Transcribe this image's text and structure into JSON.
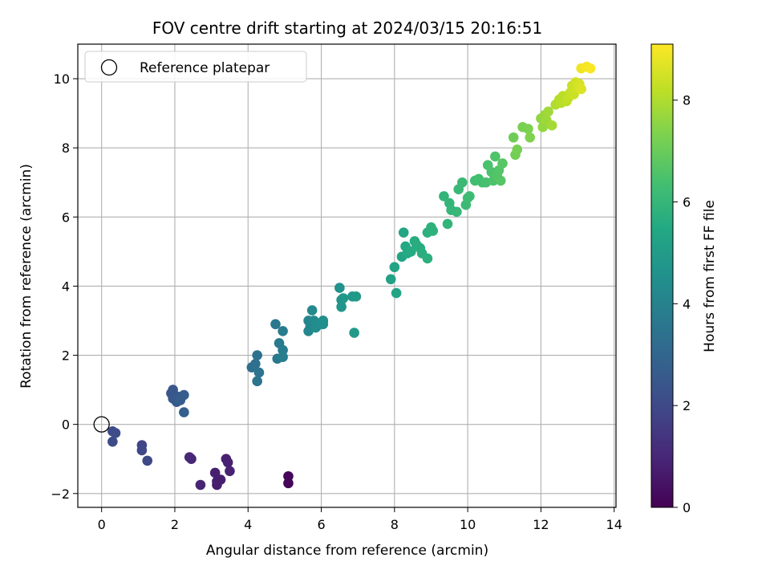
{
  "chart_data": {
    "type": "scatter",
    "title": "FOV centre drift starting at 2024/03/15 20:16:51",
    "xlabel": "Angular distance from reference (arcmin)",
    "ylabel": "Rotation from reference (arcmin)",
    "xlim": [
      -0.65,
      14.05
    ],
    "ylim": [
      -2.4,
      11.0
    ],
    "xticks": [
      0,
      2,
      4,
      6,
      8,
      10,
      12,
      14
    ],
    "yticks": [
      -2,
      0,
      2,
      4,
      6,
      8,
      10
    ],
    "grid": true,
    "legend": {
      "placement": "top-left",
      "entries": [
        "Reference platepar"
      ]
    },
    "reference_point": {
      "x": 0,
      "y": 0,
      "label": "Reference platepar"
    },
    "colorbar": {
      "label": "Hours from first FF file",
      "colormap": "viridis",
      "range": [
        0,
        9.1
      ],
      "ticks": [
        0,
        2,
        4,
        6,
        8
      ]
    },
    "points": [
      {
        "x": 5.1,
        "y": -1.7,
        "c": 0.1
      },
      {
        "x": 5.1,
        "y": -1.5,
        "c": 0.15
      },
      {
        "x": 3.15,
        "y": -1.75,
        "c": 0.7
      },
      {
        "x": 3.15,
        "y": -1.65,
        "c": 0.72
      },
      {
        "x": 3.25,
        "y": -1.6,
        "c": 0.75
      },
      {
        "x": 3.1,
        "y": -1.4,
        "c": 0.78
      },
      {
        "x": 3.4,
        "y": -1.0,
        "c": 0.8
      },
      {
        "x": 3.45,
        "y": -1.1,
        "c": 0.82
      },
      {
        "x": 3.5,
        "y": -1.35,
        "c": 0.85
      },
      {
        "x": 2.7,
        "y": -1.75,
        "c": 0.9
      },
      {
        "x": 2.45,
        "y": -1.0,
        "c": 1.0
      },
      {
        "x": 2.4,
        "y": -0.95,
        "c": 1.05
      },
      {
        "x": 1.1,
        "y": -0.6,
        "c": 1.9
      },
      {
        "x": 1.1,
        "y": -0.75,
        "c": 1.95
      },
      {
        "x": 1.25,
        "y": -1.05,
        "c": 2.0
      },
      {
        "x": 0.3,
        "y": -0.5,
        "c": 2.05
      },
      {
        "x": 0.3,
        "y": -0.2,
        "c": 2.1
      },
      {
        "x": 0.38,
        "y": -0.25,
        "c": 2.15
      },
      {
        "x": 1.9,
        "y": 0.9,
        "c": 2.4
      },
      {
        "x": 1.95,
        "y": 1.0,
        "c": 2.45
      },
      {
        "x": 1.95,
        "y": 0.75,
        "c": 2.5
      },
      {
        "x": 2.05,
        "y": 0.65,
        "c": 2.55
      },
      {
        "x": 2.1,
        "y": 0.8,
        "c": 2.6
      },
      {
        "x": 2.15,
        "y": 0.7,
        "c": 2.65
      },
      {
        "x": 2.25,
        "y": 0.85,
        "c": 2.7
      },
      {
        "x": 2.25,
        "y": 0.35,
        "c": 2.75
      },
      {
        "x": 4.1,
        "y": 1.65,
        "c": 3.3
      },
      {
        "x": 4.2,
        "y": 1.75,
        "c": 3.35
      },
      {
        "x": 4.25,
        "y": 2.0,
        "c": 3.4
      },
      {
        "x": 4.3,
        "y": 1.5,
        "c": 3.45
      },
      {
        "x": 4.25,
        "y": 1.25,
        "c": 3.5
      },
      {
        "x": 4.75,
        "y": 2.9,
        "c": 3.6
      },
      {
        "x": 4.8,
        "y": 1.9,
        "c": 3.65
      },
      {
        "x": 4.85,
        "y": 2.35,
        "c": 3.7
      },
      {
        "x": 4.95,
        "y": 2.15,
        "c": 3.75
      },
      {
        "x": 4.95,
        "y": 2.7,
        "c": 3.8
      },
      {
        "x": 4.95,
        "y": 1.95,
        "c": 3.85
      },
      {
        "x": 5.65,
        "y": 3.0,
        "c": 4.1
      },
      {
        "x": 5.65,
        "y": 2.7,
        "c": 4.15
      },
      {
        "x": 5.7,
        "y": 2.85,
        "c": 4.2
      },
      {
        "x": 5.75,
        "y": 3.3,
        "c": 4.25
      },
      {
        "x": 5.8,
        "y": 3.0,
        "c": 4.3
      },
      {
        "x": 5.85,
        "y": 2.8,
        "c": 4.35
      },
      {
        "x": 5.95,
        "y": 2.9,
        "c": 4.4
      },
      {
        "x": 6.05,
        "y": 3.0,
        "c": 4.45
      },
      {
        "x": 6.05,
        "y": 2.9,
        "c": 4.5
      },
      {
        "x": 6.5,
        "y": 3.95,
        "c": 4.6
      },
      {
        "x": 6.55,
        "y": 3.6,
        "c": 4.65
      },
      {
        "x": 6.55,
        "y": 3.4,
        "c": 4.7
      },
      {
        "x": 6.6,
        "y": 3.65,
        "c": 4.75
      },
      {
        "x": 6.85,
        "y": 3.7,
        "c": 4.8
      },
      {
        "x": 6.95,
        "y": 3.7,
        "c": 4.85
      },
      {
        "x": 6.9,
        "y": 2.65,
        "c": 4.9
      },
      {
        "x": 7.9,
        "y": 4.2,
        "c": 5.2
      },
      {
        "x": 8.0,
        "y": 4.55,
        "c": 5.25
      },
      {
        "x": 8.05,
        "y": 3.8,
        "c": 5.3
      },
      {
        "x": 8.2,
        "y": 4.85,
        "c": 5.35
      },
      {
        "x": 8.25,
        "y": 5.55,
        "c": 5.4
      },
      {
        "x": 8.3,
        "y": 5.15,
        "c": 5.45
      },
      {
        "x": 8.35,
        "y": 4.95,
        "c": 5.5
      },
      {
        "x": 8.45,
        "y": 5.0,
        "c": 5.55
      },
      {
        "x": 8.55,
        "y": 5.3,
        "c": 5.6
      },
      {
        "x": 8.6,
        "y": 5.2,
        "c": 5.62
      },
      {
        "x": 8.7,
        "y": 5.1,
        "c": 5.65
      },
      {
        "x": 8.75,
        "y": 4.95,
        "c": 5.7
      },
      {
        "x": 8.9,
        "y": 4.8,
        "c": 5.72
      },
      {
        "x": 8.9,
        "y": 5.55,
        "c": 5.75
      },
      {
        "x": 9.0,
        "y": 5.7,
        "c": 5.8
      },
      {
        "x": 9.05,
        "y": 5.6,
        "c": 5.82
      },
      {
        "x": 9.35,
        "y": 6.6,
        "c": 5.9
      },
      {
        "x": 9.45,
        "y": 5.8,
        "c": 5.92
      },
      {
        "x": 9.5,
        "y": 6.4,
        "c": 5.95
      },
      {
        "x": 9.55,
        "y": 6.2,
        "c": 6.0
      },
      {
        "x": 9.7,
        "y": 6.15,
        "c": 6.05
      },
      {
        "x": 9.75,
        "y": 6.8,
        "c": 6.1
      },
      {
        "x": 9.85,
        "y": 7.0,
        "c": 6.12
      },
      {
        "x": 9.95,
        "y": 6.35,
        "c": 6.15
      },
      {
        "x": 10.0,
        "y": 6.55,
        "c": 6.2
      },
      {
        "x": 10.05,
        "y": 6.6,
        "c": 6.22
      },
      {
        "x": 10.2,
        "y": 7.05,
        "c": 6.3
      },
      {
        "x": 10.3,
        "y": 7.1,
        "c": 6.32
      },
      {
        "x": 10.4,
        "y": 7.0,
        "c": 6.35
      },
      {
        "x": 10.5,
        "y": 7.0,
        "c": 6.4
      },
      {
        "x": 10.55,
        "y": 7.5,
        "c": 6.45
      },
      {
        "x": 10.65,
        "y": 7.3,
        "c": 6.5
      },
      {
        "x": 10.7,
        "y": 7.05,
        "c": 6.52
      },
      {
        "x": 10.75,
        "y": 7.75,
        "c": 6.55
      },
      {
        "x": 10.8,
        "y": 7.2,
        "c": 6.6
      },
      {
        "x": 10.85,
        "y": 7.35,
        "c": 6.62
      },
      {
        "x": 10.9,
        "y": 7.05,
        "c": 6.65
      },
      {
        "x": 10.95,
        "y": 7.55,
        "c": 6.7
      },
      {
        "x": 11.25,
        "y": 8.3,
        "c": 7.1
      },
      {
        "x": 11.3,
        "y": 7.8,
        "c": 7.15
      },
      {
        "x": 11.35,
        "y": 7.95,
        "c": 7.2
      },
      {
        "x": 11.5,
        "y": 8.6,
        "c": 7.25
      },
      {
        "x": 11.65,
        "y": 8.55,
        "c": 7.3
      },
      {
        "x": 11.7,
        "y": 8.3,
        "c": 7.35
      },
      {
        "x": 12.0,
        "y": 8.85,
        "c": 7.6
      },
      {
        "x": 12.05,
        "y": 8.6,
        "c": 7.65
      },
      {
        "x": 12.1,
        "y": 8.95,
        "c": 7.7
      },
      {
        "x": 12.15,
        "y": 8.8,
        "c": 7.75
      },
      {
        "x": 12.2,
        "y": 9.05,
        "c": 7.8
      },
      {
        "x": 12.3,
        "y": 8.65,
        "c": 7.85
      },
      {
        "x": 12.4,
        "y": 9.25,
        "c": 8.0
      },
      {
        "x": 12.5,
        "y": 9.4,
        "c": 8.05
      },
      {
        "x": 12.55,
        "y": 9.3,
        "c": 8.1
      },
      {
        "x": 12.6,
        "y": 9.5,
        "c": 8.15
      },
      {
        "x": 12.7,
        "y": 9.35,
        "c": 8.2
      },
      {
        "x": 12.75,
        "y": 9.45,
        "c": 8.25
      },
      {
        "x": 12.8,
        "y": 9.6,
        "c": 8.3
      },
      {
        "x": 12.85,
        "y": 9.8,
        "c": 8.35
      },
      {
        "x": 12.9,
        "y": 9.55,
        "c": 8.4
      },
      {
        "x": 12.95,
        "y": 9.9,
        "c": 8.45
      },
      {
        "x": 13.0,
        "y": 9.75,
        "c": 8.5
      },
      {
        "x": 13.05,
        "y": 9.85,
        "c": 8.55
      },
      {
        "x": 13.1,
        "y": 9.7,
        "c": 8.6
      },
      {
        "x": 13.1,
        "y": 10.3,
        "c": 8.9
      },
      {
        "x": 13.25,
        "y": 10.35,
        "c": 9.0
      },
      {
        "x": 13.35,
        "y": 10.3,
        "c": 9.05
      }
    ]
  }
}
